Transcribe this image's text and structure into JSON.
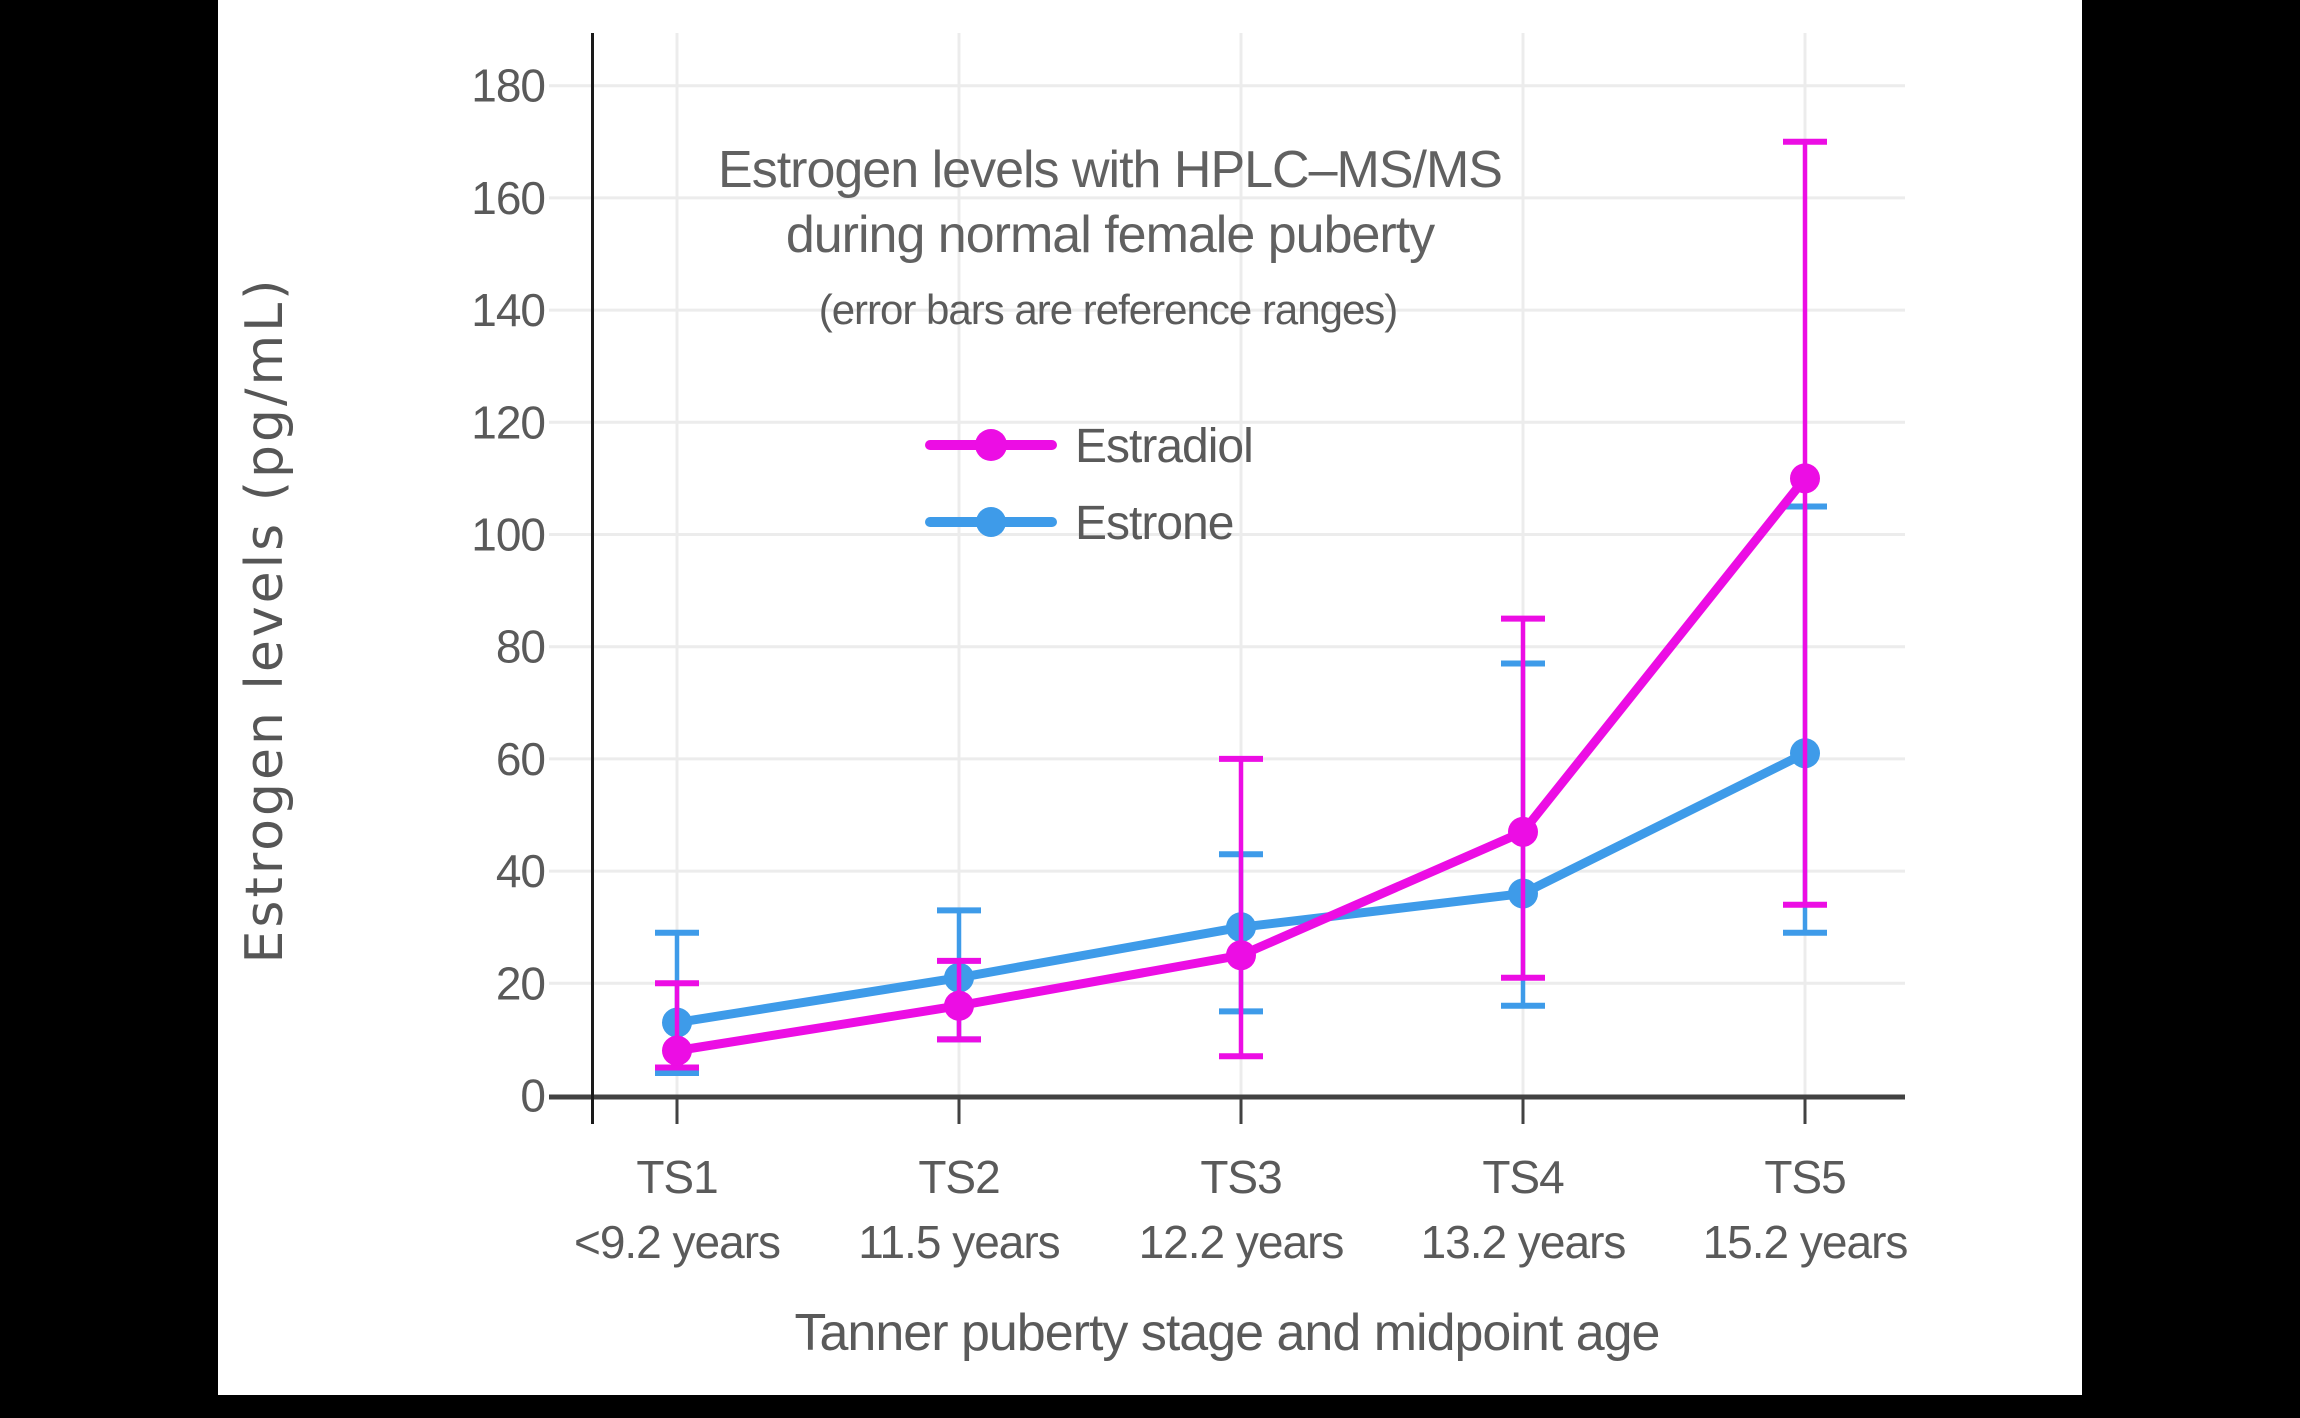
{
  "chart_data": {
    "type": "line",
    "title_line1": "Estrogen levels with HPLC–MS/MS",
    "title_line2": "during normal female puberty",
    "subtitle": "(error bars are reference ranges)",
    "ylabel": "Estrogen levels (pg/mL)",
    "xlabel": "Tanner puberty stage and midpoint age",
    "categories": [
      "TS1",
      "TS2",
      "TS3",
      "TS4",
      "TS5"
    ],
    "category_sublabels": [
      "<9.2 years",
      "11.5 years",
      "12.2 years",
      "13.2 years",
      "15.2 years"
    ],
    "y_ticks": [
      0,
      20,
      40,
      60,
      80,
      100,
      120,
      140,
      160,
      180
    ],
    "ylim": [
      0,
      190
    ],
    "grid": true,
    "legend_position": "upper-center-inside",
    "legend_order": [
      "Estradiol",
      "Estrone"
    ],
    "series": [
      {
        "name": "Estrone",
        "color": "#3E9BE9",
        "values": [
          13,
          21,
          30,
          36,
          61
        ],
        "error_low": [
          4,
          10,
          15,
          16,
          29
        ],
        "error_high": [
          29,
          33,
          43,
          77,
          105
        ]
      },
      {
        "name": "Estradiol",
        "color": "#EC0DE4",
        "values": [
          8,
          16,
          25,
          47,
          110
        ],
        "error_low": [
          5,
          10,
          7,
          21,
          34
        ],
        "error_high": [
          20,
          24,
          60,
          85,
          170
        ]
      }
    ]
  },
  "colors": {
    "estradiol": "#EC0DE4",
    "estrone": "#3E9BE9",
    "grid": "#ECECEC",
    "axis": "#424242",
    "text": "#5A5A5A",
    "background": "#FFFFFF",
    "frame": "#000000"
  }
}
